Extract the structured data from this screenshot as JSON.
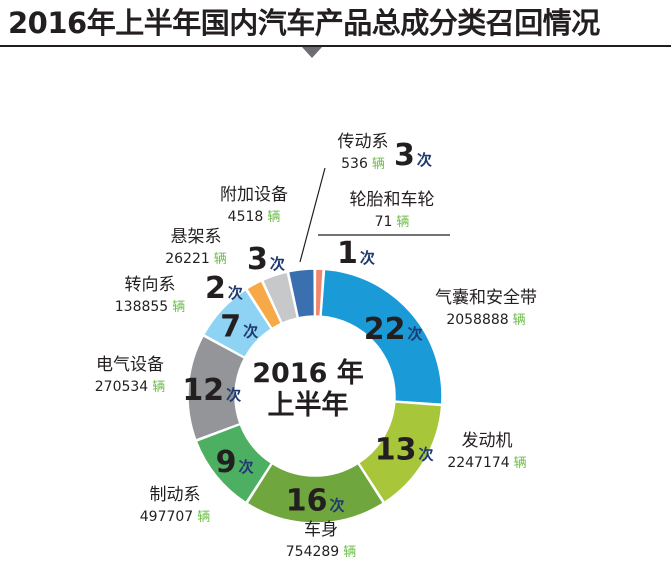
{
  "title": "2016年上半年国内汽车产品总成分类召回情况",
  "center_text": [
    "2016 年",
    "上半年"
  ],
  "count_suffix": "次",
  "unit": "辆",
  "colors": {
    "text": "#231f20",
    "count_label": "#1f3a6e",
    "vehicle_unit": "#6abd45"
  },
  "chart_data": {
    "type": "pie",
    "title": "2016年上半年国内汽车产品总成分类召回情况",
    "donut": true,
    "value_field": "recalls (次)",
    "categories": [
      "气囊和安全带",
      "发动机",
      "车身",
      "制动系",
      "电气设备",
      "转向系",
      "悬架系",
      "附加设备",
      "传动系",
      "轮胎和车轮"
    ],
    "values": [
      22,
      13,
      16,
      9,
      12,
      7,
      2,
      3,
      3,
      1
    ],
    "vehicles": [
      2058888,
      2247174,
      754289,
      497707,
      270534,
      138855,
      26221,
      4518,
      536,
      71
    ],
    "colors": [
      "#1a9bd7",
      "#a8c63a",
      "#6fa63d",
      "#4caf61",
      "#939598",
      "#8fd3f4",
      "#f7a948",
      "#c7c8ca",
      "#3a6fb0",
      "#f0866b"
    ]
  }
}
